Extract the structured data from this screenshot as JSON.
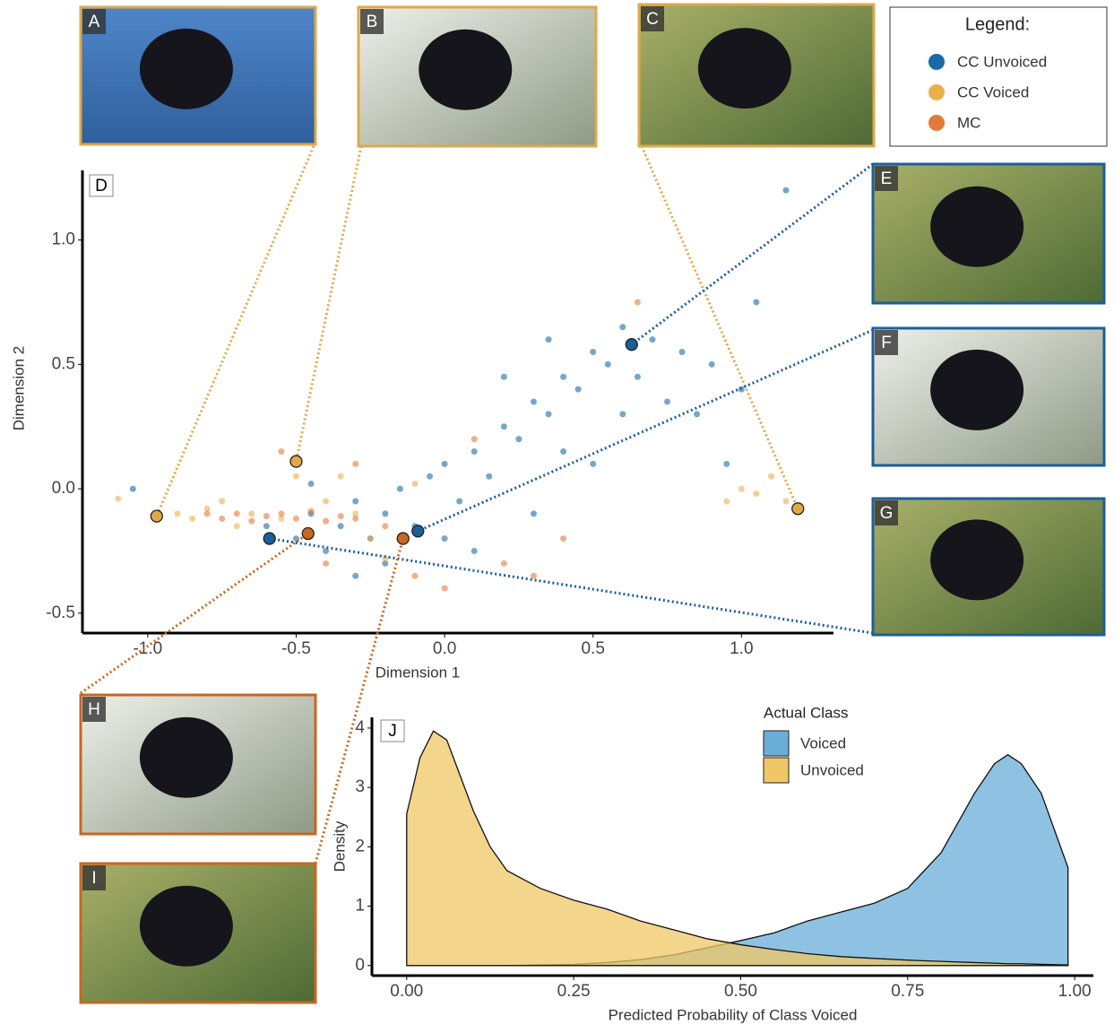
{
  "chart_data": [
    {
      "type": "scatter",
      "panel_label": "D",
      "x_label": "Dimension 1",
      "y_label": "Dimension 2",
      "legend_title": "Legend:",
      "xlim": [
        -1.22,
        1.31
      ],
      "ylim": [
        -0.58,
        1.28
      ],
      "xticks": [
        {
          "value": -1,
          "label": "-1.0"
        },
        -0.5,
        {
          "value": 0,
          "label": "0.0"
        },
        0.5,
        {
          "value": 1,
          "label": "1.0"
        }
      ],
      "yticks": [
        -0.5,
        {
          "value": 0,
          "label": "0.0"
        },
        0.5,
        {
          "value": 1,
          "label": "1.0"
        }
      ],
      "series": [
        {
          "name": "CC Unvoiced",
          "color": "#1a6aa8",
          "x": [
            -0.6,
            -0.5,
            -0.45,
            -0.4,
            -0.35,
            -0.3,
            -0.25,
            -0.2,
            -0.15,
            -0.1,
            -0.05,
            0.0,
            0.05,
            0.1,
            0.15,
            0.2,
            0.25,
            0.3,
            0.35,
            0.4,
            0.45,
            0.5,
            0.55,
            0.6,
            0.65,
            0.7,
            0.75,
            0.8,
            0.85,
            0.9,
            1.0,
            1.05,
            0.3,
            0.5,
            -0.3,
            -0.2,
            0.1,
            0.0,
            0.2,
            0.4,
            0.6,
            0.35,
            -0.45,
            -1.05,
            1.15,
            0.95
          ],
          "y": [
            -0.15,
            -0.2,
            -0.1,
            -0.25,
            -0.15,
            -0.05,
            -0.2,
            -0.1,
            0.0,
            -0.15,
            0.05,
            0.1,
            -0.05,
            0.15,
            0.05,
            0.25,
            0.2,
            0.35,
            0.3,
            0.45,
            0.4,
            0.55,
            0.5,
            0.65,
            0.45,
            0.6,
            0.35,
            0.55,
            0.3,
            0.5,
            0.4,
            0.75,
            -0.1,
            0.1,
            -0.35,
            -0.3,
            -0.25,
            -0.2,
            0.45,
            0.15,
            0.3,
            0.6,
            0.02,
            0.0,
            1.2,
            0.1
          ]
        },
        {
          "name": "CC Voiced",
          "color": "#eab04c",
          "x": [
            -1.1,
            -0.9,
            -0.85,
            -0.8,
            -0.7,
            -0.65,
            -0.55,
            -0.4,
            -0.35,
            -0.3,
            -0.25,
            -0.2,
            -0.5,
            -0.45,
            -0.6,
            -0.1,
            1.0,
            1.05,
            1.1,
            1.15,
            0.95,
            -0.75
          ],
          "y": [
            -0.04,
            -0.1,
            -0.12,
            -0.08,
            -0.15,
            -0.1,
            -0.12,
            -0.05,
            0.05,
            -0.1,
            -0.2,
            -0.28,
            0.05,
            -0.18,
            -0.2,
            0.02,
            0.0,
            -0.02,
            0.05,
            -0.05,
            -0.05,
            -0.05
          ]
        },
        {
          "name": "MC",
          "color": "#e27a3a",
          "x": [
            -0.75,
            -0.7,
            -0.65,
            -0.6,
            -0.55,
            -0.5,
            -0.45,
            -0.4,
            -0.35,
            -0.3,
            -0.8,
            -0.2,
            -0.1,
            0.0,
            0.2,
            0.4,
            -0.4,
            -0.55,
            0.65,
            0.1,
            -0.3,
            0.3
          ],
          "y": [
            -0.12,
            -0.1,
            -0.13,
            -0.11,
            -0.1,
            -0.12,
            -0.09,
            -0.13,
            -0.11,
            -0.12,
            -0.1,
            -0.15,
            -0.35,
            -0.4,
            -0.3,
            -0.2,
            -0.3,
            0.15,
            0.75,
            0.2,
            0.1,
            -0.35
          ]
        }
      ],
      "callouts": [
        {
          "label": "A",
          "x": -0.97,
          "y": -0.11,
          "color": "#e0a849"
        },
        {
          "label": "B",
          "x": -0.5,
          "y": 0.11,
          "color": "#e0a849"
        },
        {
          "label": "C",
          "x": 1.19,
          "y": -0.08,
          "color": "#e0a849"
        },
        {
          "label": "E",
          "x": 0.63,
          "y": 0.58,
          "color": "#1b5e9a"
        },
        {
          "label": "F",
          "x": -0.09,
          "y": -0.17,
          "color": "#1b5e9a"
        },
        {
          "label": "G",
          "x": -0.59,
          "y": -0.2,
          "color": "#1b5e9a"
        },
        {
          "label": "H",
          "x": -0.46,
          "y": -0.18,
          "color": "#c8671f"
        },
        {
          "label": "I",
          "x": -0.14,
          "y": -0.2,
          "color": "#c8671f"
        }
      ]
    },
    {
      "type": "area",
      "panel_label": "J",
      "x_label": "Predicted Probability of Class Voiced",
      "y_label": "Density",
      "legend_title": "Actual Class",
      "xlim": [
        -0.052,
        1.028
      ],
      "ylim": [
        -0.17,
        4.18
      ],
      "xticks": [
        {
          "value": 0,
          "label": "0.00"
        },
        {
          "value": 0.25,
          "label": "0.25"
        },
        {
          "value": 0.5,
          "label": "0.50"
        },
        {
          "value": 0.75,
          "label": "0.75"
        },
        {
          "value": 1,
          "label": "1.00"
        }
      ],
      "yticks": [
        0,
        1,
        2,
        3,
        4
      ],
      "x": [
        0,
        0.02,
        0.04,
        0.06,
        0.08,
        0.1,
        0.125,
        0.15,
        0.2,
        0.25,
        0.3,
        0.35,
        0.4,
        0.45,
        0.5,
        0.55,
        0.6,
        0.65,
        0.7,
        0.75,
        0.8,
        0.85,
        0.88,
        0.9,
        0.92,
        0.95,
        0.99
      ],
      "series": [
        {
          "name": "Voiced",
          "color": "#6aaed8",
          "values": [
            0,
            0,
            0,
            0,
            0,
            0,
            0,
            0,
            0.01,
            0.02,
            0.05,
            0.1,
            0.18,
            0.3,
            0.42,
            0.55,
            0.75,
            0.9,
            1.05,
            1.3,
            1.9,
            2.9,
            3.4,
            3.55,
            3.4,
            2.9,
            1.65
          ]
        },
        {
          "name": "Unvoiced",
          "color": "#f0c766",
          "values": [
            2.55,
            3.5,
            3.95,
            3.8,
            3.2,
            2.6,
            2.0,
            1.6,
            1.3,
            1.1,
            0.95,
            0.75,
            0.6,
            0.45,
            0.35,
            0.27,
            0.2,
            0.15,
            0.12,
            0.09,
            0.07,
            0.05,
            0.04,
            0.03,
            0.03,
            0.02,
            0.01
          ]
        }
      ]
    }
  ]
}
